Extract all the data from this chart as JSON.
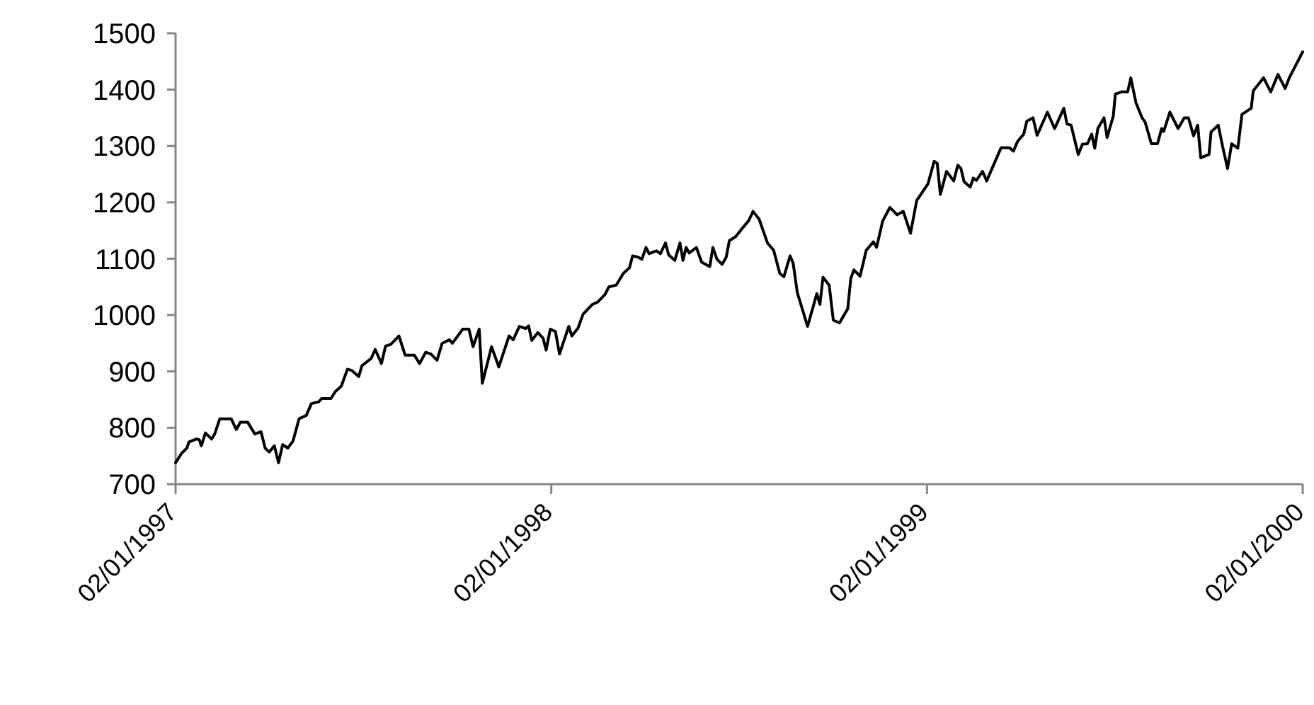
{
  "chart_data": {
    "type": "line",
    "x": [
      "1997-01-02",
      "1997-01-08",
      "1997-01-13",
      "1997-01-15",
      "1997-01-22",
      "1997-01-25",
      "1997-01-27",
      "1997-01-31",
      "1997-02-06",
      "1997-02-09",
      "1997-02-14",
      "1997-02-25",
      "1997-03-02",
      "1997-03-06",
      "1997-03-13",
      "1997-03-20",
      "1997-03-26",
      "1997-03-30",
      "1997-04-03",
      "1997-04-08",
      "1997-04-12",
      "1997-04-16",
      "1997-04-21",
      "1997-04-26",
      "1997-05-02",
      "1997-05-09",
      "1997-05-14",
      "1997-05-21",
      "1997-05-24",
      "1997-06-02",
      "1997-06-06",
      "1997-06-12",
      "1997-06-18",
      "1997-06-22",
      "1997-06-29",
      "1997-07-02",
      "1997-07-11",
      "1997-07-15",
      "1997-07-21",
      "1997-07-25",
      "1997-07-30",
      "1997-08-07",
      "1997-08-13",
      "1997-08-22",
      "1997-08-27",
      "1997-09-02",
      "1997-09-07",
      "1997-09-13",
      "1997-09-18",
      "1997-09-25",
      "1997-09-28",
      "1997-10-08",
      "1997-10-14",
      "1997-10-18",
      "1997-10-24",
      "1997-10-27",
      "1997-11-05",
      "1997-11-12",
      "1997-11-22",
      "1997-11-26",
      "1997-12-02",
      "1997-12-08",
      "1997-12-11",
      "1997-12-14",
      "1997-12-20",
      "1997-12-25",
      "1997-12-28",
      "1998-01-01",
      "1998-01-06",
      "1998-01-10",
      "1998-01-19",
      "1998-01-22",
      "1998-01-28",
      "1998-02-02",
      "1998-02-11",
      "1998-02-16",
      "1998-02-23",
      "1998-02-27",
      "1998-03-06",
      "1998-03-13",
      "1998-03-19",
      "1998-03-22",
      "1998-03-27",
      "1998-03-31",
      "1998-04-04",
      "1998-04-07",
      "1998-04-14",
      "1998-04-18",
      "1998-04-23",
      "1998-04-26",
      "1998-05-02",
      "1998-05-07",
      "1998-05-10",
      "1998-05-13",
      "1998-05-16",
      "1998-05-23",
      "1998-05-28",
      "1998-06-05",
      "1998-06-08",
      "1998-06-12",
      "1998-06-17",
      "1998-06-21",
      "1998-06-24",
      "1998-06-30",
      "1998-07-08",
      "1998-07-13",
      "1998-07-17",
      "1998-07-23",
      "1998-07-31",
      "1998-08-06",
      "1998-08-12",
      "1998-08-16",
      "1998-08-22",
      "1998-08-25",
      "1998-08-29",
      "1998-09-08",
      "1998-09-17",
      "1998-09-20",
      "1998-09-23",
      "1998-09-29",
      "1998-10-03",
      "1998-10-09",
      "1998-10-17",
      "1998-10-20",
      "1998-10-23",
      "1998-10-29",
      "1998-11-04",
      "1998-11-11",
      "1998-11-14",
      "1998-11-20",
      "1998-11-27",
      "1998-12-04",
      "1998-12-10",
      "1998-12-17",
      "1998-12-23",
      "1999-01-03",
      "1999-01-09",
      "1999-01-12",
      "1999-01-15",
      "1999-01-21",
      "1999-01-28",
      "1999-02-01",
      "1999-02-04",
      "1999-02-07",
      "1999-02-13",
      "1999-02-16",
      "1999-02-19",
      "1999-02-25",
      "1999-03-01",
      "1999-03-15",
      "1999-03-23",
      "1999-03-27",
      "1999-03-31",
      "1999-04-06",
      "1999-04-09",
      "1999-04-15",
      "1999-04-19",
      "1999-04-29",
      "1999-05-06",
      "1999-05-15",
      "1999-05-18",
      "1999-05-22",
      "1999-05-29",
      "1999-06-02",
      "1999-06-07",
      "1999-06-11",
      "1999-06-14",
      "1999-06-17",
      "1999-06-23",
      "1999-06-26",
      "1999-07-02",
      "1999-07-04",
      "1999-07-10",
      "1999-07-16",
      "1999-07-19",
      "1999-07-24",
      "1999-07-30",
      "1999-08-02",
      "1999-08-08",
      "1999-08-14",
      "1999-08-18",
      "1999-08-20",
      "1999-08-26",
      "1999-09-03",
      "1999-09-09",
      "1999-09-13",
      "1999-09-18",
      "1999-09-22",
      "1999-09-25",
      "1999-10-03",
      "1999-10-05",
      "1999-10-12",
      "1999-10-16",
      "1999-10-21",
      "1999-10-25",
      "1999-10-31",
      "1999-11-04",
      "1999-11-13",
      "1999-11-15",
      "1999-11-25",
      "1999-12-02",
      "1999-12-09",
      "1999-12-16",
      "1999-12-20",
      "2000-01-02"
    ],
    "series": [
      {
        "color": "#000000",
        "values": [
          738,
          755,
          764,
          775,
          780,
          779,
          768,
          791,
          780,
          789,
          816,
          816,
          797,
          810,
          810,
          789,
          793,
          764,
          757,
          768,
          738,
          770,
          764,
          776,
          816,
          822,
          843,
          846,
          852,
          852,
          864,
          874,
          904,
          902,
          891,
          910,
          923,
          939,
          914,
          945,
          948,
          963,
          929,
          929,
          914,
          934,
          931,
          920,
          950,
          956,
          950,
          975,
          975,
          944,
          975,
          879,
          944,
          908,
          963,
          956,
          980,
          976,
          981,
          955,
          969,
          959,
          938,
          975,
          971,
          931,
          980,
          963,
          977,
          1002,
          1019,
          1023,
          1036,
          1050,
          1053,
          1074,
          1084,
          1105,
          1103,
          1099,
          1120,
          1109,
          1114,
          1109,
          1128,
          1107,
          1097,
          1128,
          1097,
          1120,
          1110,
          1120,
          1094,
          1086,
          1120,
          1099,
          1090,
          1103,
          1132,
          1139,
          1157,
          1168,
          1184,
          1170,
          1128,
          1115,
          1074,
          1068,
          1105,
          1092,
          1040,
          980,
          1038,
          1019,
          1067,
          1053,
          991,
          986,
          1011,
          1065,
          1080,
          1069,
          1115,
          1130,
          1120,
          1167,
          1191,
          1178,
          1184,
          1145,
          1203,
          1233,
          1273,
          1269,
          1214,
          1255,
          1238,
          1266,
          1260,
          1237,
          1227,
          1243,
          1239,
          1255,
          1238,
          1297,
          1297,
          1291,
          1308,
          1321,
          1344,
          1350,
          1319,
          1360,
          1331,
          1367,
          1339,
          1337,
          1285,
          1303,
          1304,
          1321,
          1296,
          1331,
          1350,
          1315,
          1353,
          1392,
          1396,
          1396,
          1421,
          1377,
          1350,
          1342,
          1304,
          1304,
          1331,
          1326,
          1360,
          1331,
          1350,
          1350,
          1318,
          1337,
          1279,
          1285,
          1325,
          1337,
          1301,
          1260,
          1304,
          1296,
          1356,
          1367,
          1398,
          1421,
          1396,
          1427,
          1402,
          1421,
          1467
        ]
      }
    ],
    "xlim": [
      "1997-01-02",
      "2000-01-02"
    ],
    "xticks": [
      {
        "value": "1997-01-02",
        "label": "02/01/1997"
      },
      {
        "value": "1998-01-02",
        "label": "02/01/1998"
      },
      {
        "value": "1999-01-02",
        "label": "02/01/1999"
      },
      {
        "value": "2000-01-02",
        "label": "02/01/2000"
      }
    ],
    "ylim": [
      700,
      1500
    ],
    "yticks": [
      700,
      800,
      900,
      1000,
      1100,
      1200,
      1300,
      1400,
      1500
    ],
    "grid": false,
    "marker": "none",
    "line_style": "solid"
  }
}
